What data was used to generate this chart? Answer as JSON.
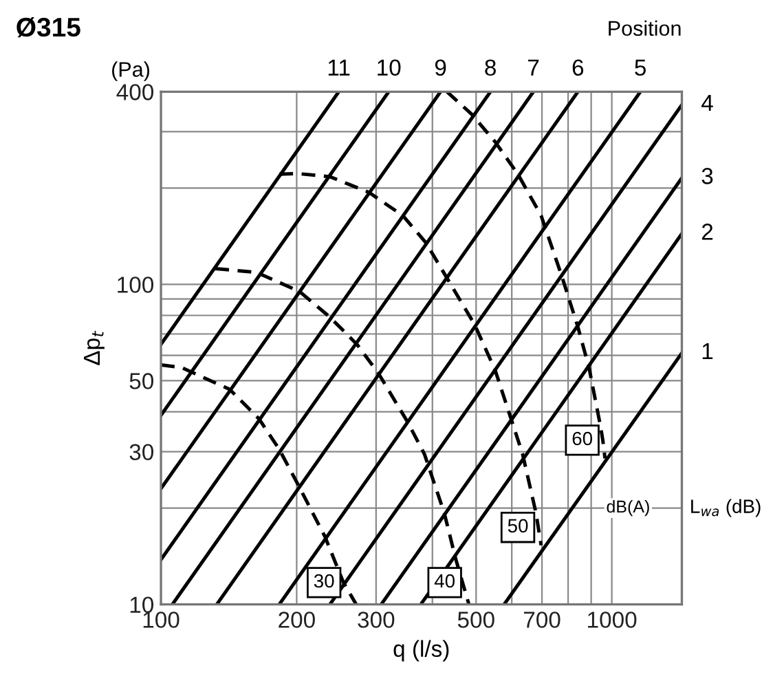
{
  "chart_data": {
    "type": "line",
    "title": "Ø315",
    "xlabel": "q (l/s)",
    "ylabel": "Δp$_{t}$",
    "log": "xy",
    "grid": true,
    "line_style": "solid",
    "marker": "none",
    "xlim": [
      100,
      1430
    ],
    "ylim": [
      10,
      400
    ],
    "xticks": [
      100,
      200,
      300,
      {
        "value": 400,
        "label": null
      },
      500,
      {
        "value": 600,
        "label": null
      },
      700,
      {
        "value": 800,
        "label": null
      },
      {
        "value": 900,
        "label": null
      },
      1000
    ],
    "yticks": [
      10,
      {
        "value": 20,
        "label": null
      },
      30,
      {
        "value": 40,
        "label": null
      },
      50,
      {
        "value": 60,
        "label": null
      },
      {
        "value": 70,
        "label": null
      },
      {
        "value": 80,
        "label": null
      },
      {
        "value": 90,
        "label": null
      },
      100,
      {
        "value": 200,
        "label": null
      },
      {
        "value": 300,
        "label": null
      },
      400
    ],
    "series": [
      {
        "name": "11",
        "color": "#000000",
        "x": [
          100,
          248
        ],
        "values": [
          65,
          400
        ]
      },
      {
        "name": "10",
        "color": "#000000",
        "x": [
          100,
          320
        ],
        "values": [
          39,
          400
        ]
      },
      {
        "name": "9",
        "color": "#000000",
        "x": [
          100,
          417
        ],
        "values": [
          23,
          400
        ]
      },
      {
        "name": "8",
        "color": "#000000",
        "x": [
          100,
          538
        ],
        "values": [
          13.8,
          400
        ]
      },
      {
        "name": "7",
        "color": "#000000",
        "x": [
          106,
          670
        ],
        "values": [
          10,
          400
        ]
      },
      {
        "name": "6",
        "color": "#000000",
        "x": [
          133,
          841
        ],
        "values": [
          10,
          400
        ]
      },
      {
        "name": "5",
        "color": "#000000",
        "x": [
          183,
          1157
        ],
        "values": [
          10,
          400
        ]
      },
      {
        "name": "4",
        "color": "#000000",
        "x": [
          237,
          1430
        ],
        "values": [
          10,
          364
        ]
      },
      {
        "name": "3",
        "color": "#000000",
        "x": [
          308,
          1430
        ],
        "values": [
          10,
          215
        ]
      },
      {
        "name": "2",
        "color": "#000000",
        "x": [
          377,
          1430
        ],
        "values": [
          10,
          144
        ]
      },
      {
        "name": "1",
        "color": "#000000",
        "x": [
          577,
          1430
        ],
        "values": [
          10,
          61
        ]
      },
      {
        "color": "#000000",
        "line_style": "dashed",
        "x": [
          100,
          111,
          142,
          165,
          183,
          201,
          231,
          254,
          271
        ],
        "values": [
          56,
          55,
          47,
          38,
          30.5,
          23.8,
          16.3,
          11.7,
          10
        ]
      },
      {
        "color": "#000000",
        "line_style": "dashed",
        "x": [
          132,
          163,
          203,
          237,
          272,
          303,
          353,
          384,
          425,
          451,
          482
        ],
        "values": [
          112,
          109,
          95,
          79,
          65,
          53,
          37,
          29.5,
          19.3,
          13.8,
          10
        ]
      },
      {
        "color": "#000000",
        "line_style": "dashed",
        "x": [
          183,
          201,
          237,
          289,
          344,
          387,
          496,
          551,
          634,
          679,
          697
        ],
        "values": [
          221,
          222,
          217,
          194,
          164,
          135,
          75,
          54,
          29.5,
          19.3,
          15.3
        ]
      },
      {
        "color": "#000000",
        "line_style": "dashed",
        "x": [
          431,
          489,
          551,
          619,
          697,
          773,
          840,
          890,
          944,
          955,
          966
        ],
        "values": [
          400,
          340,
          279,
          221,
          164,
          107,
          74,
          55,
          36,
          32.6,
          28.6
        ]
      }
    ],
    "annotations": [
      "Position",
      "(Pa)",
      "L$_{wa}$ (dB)",
      "dB(A)",
      {
        "text": "30",
        "x": 230,
        "y": 11.7
      },
      {
        "text": "40",
        "x": 426,
        "y": 11.7
      },
      {
        "text": "50",
        "x": 619,
        "y": 17.4
      },
      {
        "text": "60",
        "x": 860,
        "y": 32.6
      }
    ]
  }
}
